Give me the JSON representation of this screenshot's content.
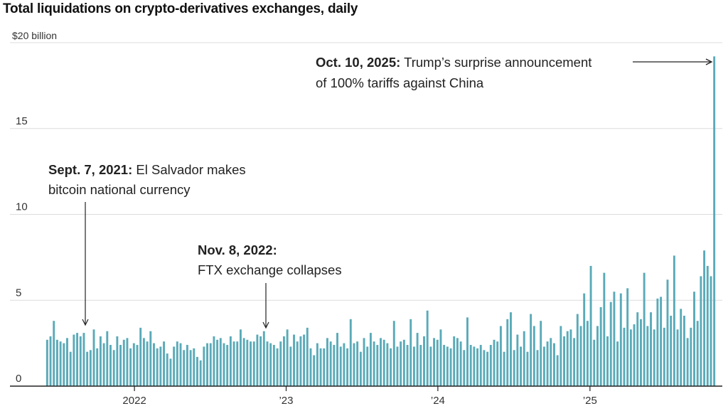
{
  "chart_data": {
    "type": "bar",
    "title": "Total liquidations on crypto-derivatives exchanges, daily",
    "unit_label": "$20 billion",
    "ylim": [
      0,
      20
    ],
    "y_ticks": [
      {
        "value": 0,
        "label": "0"
      },
      {
        "value": 5,
        "label": "5"
      },
      {
        "value": 10,
        "label": "10"
      },
      {
        "value": 15,
        "label": "15"
      }
    ],
    "x_ticks": [
      {
        "date": "2022-01-01",
        "label": "2022"
      },
      {
        "date": "2023-01-01",
        "label": "’23"
      },
      {
        "date": "2024-01-01",
        "label": "’24"
      },
      {
        "date": "2025-01-01",
        "label": "’25"
      }
    ],
    "x_start": "2021-06-01",
    "x_end": "2025-10-31",
    "bar_color": "#5aaab8",
    "values": [
      2.7,
      2.9,
      3.8,
      2.7,
      2.6,
      2.5,
      2.8,
      2.0,
      3.0,
      3.1,
      2.9,
      3.1,
      2.0,
      2.1,
      3.3,
      2.2,
      2.9,
      2.5,
      3.2,
      2.4,
      2.1,
      2.9,
      2.4,
      2.7,
      2.8,
      2.2,
      2.5,
      2.4,
      3.4,
      2.8,
      2.6,
      3.2,
      2.5,
      2.2,
      2.3,
      2.6,
      1.9,
      1.6,
      2.3,
      2.6,
      2.5,
      2.1,
      2.4,
      2.1,
      2.2,
      1.7,
      1.5,
      2.3,
      2.5,
      2.5,
      2.9,
      2.7,
      2.8,
      2.5,
      2.4,
      2.9,
      2.6,
      2.6,
      3.3,
      2.8,
      2.7,
      2.6,
      2.6,
      3.0,
      2.9,
      3.2,
      2.6,
      2.5,
      2.4,
      2.2,
      2.6,
      2.9,
      3.3,
      2.3,
      3.0,
      2.6,
      2.9,
      3.0,
      3.4,
      2.2,
      1.8,
      2.5,
      2.2,
      2.2,
      2.8,
      2.6,
      2.4,
      3.1,
      2.3,
      2.5,
      2.2,
      3.9,
      2.5,
      2.6,
      2.0,
      2.8,
      2.3,
      3.1,
      2.6,
      2.4,
      2.8,
      2.7,
      2.5,
      2.2,
      3.8,
      2.3,
      2.6,
      2.7,
      2.4,
      3.9,
      2.3,
      3.1,
      2.4,
      2.9,
      4.4,
      2.3,
      2.8,
      2.7,
      3.3,
      2.4,
      2.3,
      2.2,
      2.9,
      2.8,
      2.6,
      2.1,
      4.0,
      2.4,
      2.3,
      2.2,
      2.4,
      2.1,
      2.0,
      2.4,
      2.7,
      2.6,
      3.5,
      2.0,
      3.9,
      4.3,
      2.1,
      3.0,
      2.3,
      3.2,
      2.0,
      4.2,
      3.5,
      2.1,
      3.8,
      2.3,
      2.6,
      2.8,
      2.5,
      1.8,
      3.5,
      2.9,
      3.2,
      3.3,
      2.8,
      4.2,
      3.5,
      5.4,
      3.8,
      7.0,
      2.7,
      3.5,
      4.6,
      6.6,
      2.9,
      4.9,
      5.5,
      2.6,
      5.4,
      3.4,
      5.7,
      3.3,
      3.6,
      4.3,
      3.9,
      6.6,
      3.5,
      4.3,
      3.3,
      5.1,
      5.2,
      3.4,
      6.2,
      4.1,
      7.6,
      3.3,
      4.5,
      4.1,
      2.8,
      3.4,
      5.5,
      3.8,
      6.4,
      7.9,
      7.0,
      6.4,
      19.2
    ]
  },
  "annotations": [
    {
      "bold": "Oct. 10, 2025:",
      "line1": " Trump’s surprise announcement",
      "line2": "of 100% tariffs against China"
    },
    {
      "bold": "Sept. 7, 2021:",
      "line1": " El Salvador makes",
      "line2": "bitcoin national currency"
    },
    {
      "bold": "Nov. 8, 2022:",
      "line1": "",
      "line2": "FTX exchange collapses"
    }
  ]
}
